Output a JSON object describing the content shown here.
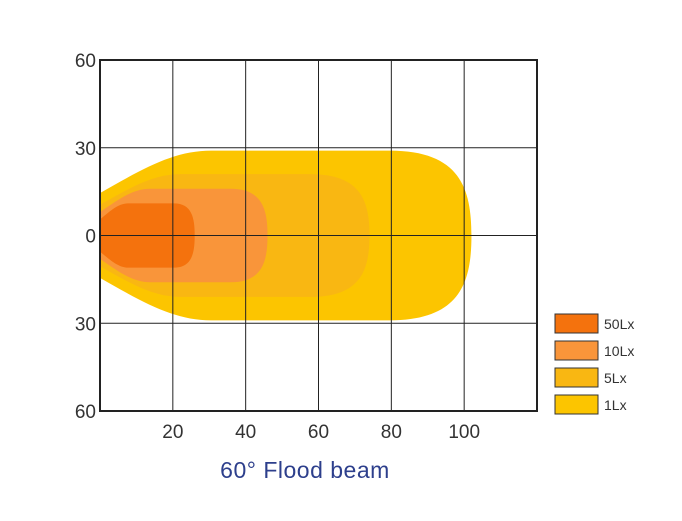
{
  "chart_data": {
    "type": "area",
    "title": "60°  Flood beam",
    "xlim": [
      0,
      120
    ],
    "ylim": [
      -60,
      60
    ],
    "x_ticks": [
      20,
      40,
      60,
      80,
      100
    ],
    "y_ticks": [
      {
        "value": 60,
        "label": "60"
      },
      {
        "value": 30,
        "label": "30"
      },
      {
        "value": 0,
        "label": "0"
      },
      {
        "value": -30,
        "label": "30"
      },
      {
        "value": -60,
        "label": "60"
      }
    ],
    "grid": true,
    "legend_position": "right",
    "series": [
      {
        "name": "1Lx",
        "color": "#fcc500",
        "max_distance": 102,
        "half_width": 29
      },
      {
        "name": "5Lx",
        "color": "#f9b712",
        "max_distance": 74,
        "half_width": 21
      },
      {
        "name": "10Lx",
        "color": "#f9953a",
        "max_distance": 46,
        "half_width": 16
      },
      {
        "name": "50Lx",
        "color": "#f4720d",
        "max_distance": 26,
        "half_width": 11
      }
    ],
    "legend": [
      {
        "name": "50Lx",
        "color": "#f4720d"
      },
      {
        "name": "10Lx",
        "color": "#f9953a"
      },
      {
        "name": "5Lx",
        "color": "#f9b712"
      },
      {
        "name": "1Lx",
        "color": "#fcc500"
      }
    ]
  }
}
